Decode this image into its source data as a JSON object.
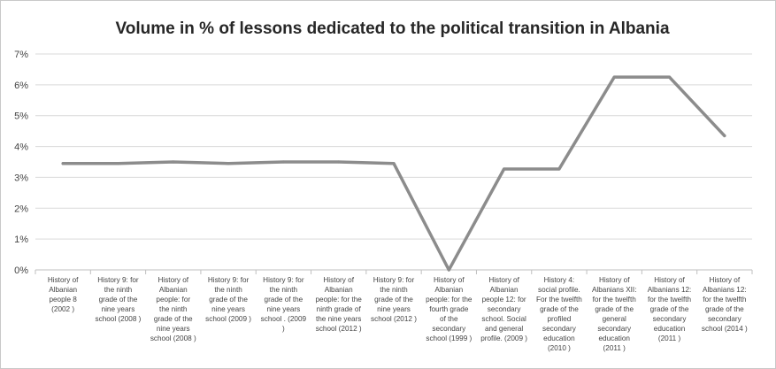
{
  "chart_data": {
    "type": "line",
    "title": "Volume in % of lessons dedicated to the political transition in Albania",
    "xlabel": "",
    "ylabel": "",
    "ylim": [
      0,
      7
    ],
    "yticks": [
      "0%",
      "1%",
      "2%",
      "3%",
      "4%",
      "5%",
      "6%",
      "7%"
    ],
    "grid": true,
    "legend": "none",
    "colors": {
      "line": "#8c8c8c",
      "grid": "#d9d9d9",
      "axis": "#bfbfbf",
      "text": "#444444"
    },
    "categories": [
      [
        "History of",
        "Albanian",
        "people  8",
        "(2002 )"
      ],
      [
        "History 9: for",
        "the ninth",
        "grade of the",
        "nine years",
        "school (2008 )"
      ],
      [
        "History of",
        "Albanian",
        "people:  for",
        "the ninth",
        "grade of the",
        "nine years",
        "school  (2008 )"
      ],
      [
        "History 9: for",
        "the ninth",
        "grade of the",
        "nine years",
        "school  (2009 )"
      ],
      [
        "History 9: for",
        "the ninth",
        "grade of the",
        "nine years",
        "school . (2009",
        ")"
      ],
      [
        "History of",
        "Albanian",
        "people: for the",
        "ninth grade of",
        "the nine years",
        "school (2012 )"
      ],
      [
        "History 9: for",
        "the ninth",
        "grade of the",
        "nine years",
        "school  (2012 )"
      ],
      [
        "History of",
        "Albanian",
        "people: for the",
        "fourth grade",
        "of the",
        "secondary",
        "school (1999 )"
      ],
      [
        "History of",
        "Albanian",
        "people 12: for",
        "secondary",
        "school. Social",
        "and general",
        "profile. (2009 )"
      ],
      [
        "History 4:",
        "social profile.",
        "For the twelfth",
        "grade of the",
        "profiled",
        "secondary",
        "education",
        "(2010 )"
      ],
      [
        "History of",
        "Albanians XII:",
        "for the twelfth",
        "grade of the",
        "general",
        "secondary",
        "education",
        "(2011 )"
      ],
      [
        "History of",
        "Albanians 12:",
        "for the twelfth",
        "grade of the",
        "secondary",
        "education",
        "(2011 )"
      ],
      [
        "History of",
        "Albanians 12:",
        "for the twelfth",
        "grade of the",
        "secondary",
        "school  (2014 )"
      ]
    ],
    "series": [
      {
        "values": [
          3.45,
          3.45,
          3.5,
          3.45,
          3.5,
          3.5,
          3.45,
          0.0,
          3.27,
          3.27,
          6.25,
          6.25,
          4.35
        ]
      }
    ]
  }
}
